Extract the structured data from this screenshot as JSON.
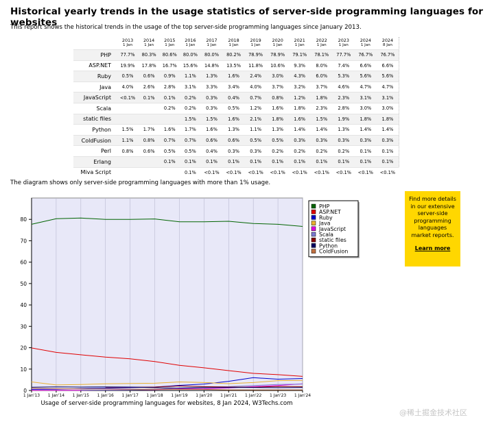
{
  "title": "Historical yearly trends in the usage statistics of server-side programming languages for websites",
  "intro": "This report shows the historical trends in the usage of the top server-side programming languages since January 2013.",
  "table": {
    "columns": [
      {
        "year": "2013",
        "date": "1 Jan"
      },
      {
        "year": "2014",
        "date": "1 Jan"
      },
      {
        "year": "2015",
        "date": "1 Jan"
      },
      {
        "year": "2016",
        "date": "1 Jan"
      },
      {
        "year": "2017",
        "date": "1 Jan"
      },
      {
        "year": "2018",
        "date": "1 Jan"
      },
      {
        "year": "2019",
        "date": "1 Jan"
      },
      {
        "year": "2020",
        "date": "1 Jan"
      },
      {
        "year": "2021",
        "date": "1 Jan"
      },
      {
        "year": "2022",
        "date": "1 Jan"
      },
      {
        "year": "2023",
        "date": "1 Jan"
      },
      {
        "year": "2024",
        "date": "1 Jan"
      },
      {
        "year": "2024",
        "date": "8 Jan"
      }
    ],
    "rows": [
      {
        "name": "PHP",
        "values": [
          "77.7%",
          "80.3%",
          "80.6%",
          "80.0%",
          "80.0%",
          "80.2%",
          "78.9%",
          "78.9%",
          "79.1%",
          "78.1%",
          "77.7%",
          "76.7%",
          "76.7%"
        ]
      },
      {
        "name": "ASP.NET",
        "values": [
          "19.9%",
          "17.8%",
          "16.7%",
          "15.6%",
          "14.8%",
          "13.5%",
          "11.8%",
          "10.6%",
          "9.3%",
          "8.0%",
          "7.4%",
          "6.6%",
          "6.6%"
        ]
      },
      {
        "name": "Ruby",
        "values": [
          "0.5%",
          "0.6%",
          "0.9%",
          "1.1%",
          "1.3%",
          "1.6%",
          "2.4%",
          "3.0%",
          "4.3%",
          "6.0%",
          "5.3%",
          "5.6%",
          "5.6%"
        ]
      },
      {
        "name": "Java",
        "values": [
          "4.0%",
          "2.6%",
          "2.8%",
          "3.1%",
          "3.3%",
          "3.4%",
          "4.0%",
          "3.7%",
          "3.2%",
          "3.7%",
          "4.6%",
          "4.7%",
          "4.7%"
        ]
      },
      {
        "name": "JavaScript",
        "values": [
          "<0.1%",
          "0.1%",
          "0.1%",
          "0.2%",
          "0.3%",
          "0.4%",
          "0.7%",
          "0.8%",
          "1.2%",
          "1.8%",
          "2.3%",
          "3.1%",
          "3.1%"
        ]
      },
      {
        "name": "Scala",
        "values": [
          "",
          "",
          "0.2%",
          "0.2%",
          "0.3%",
          "0.5%",
          "1.2%",
          "1.6%",
          "1.8%",
          "2.3%",
          "2.8%",
          "3.0%",
          "3.0%"
        ]
      },
      {
        "name": "static files",
        "values": [
          "",
          "",
          "",
          "1.5%",
          "1.5%",
          "1.6%",
          "2.1%",
          "1.8%",
          "1.6%",
          "1.5%",
          "1.9%",
          "1.8%",
          "1.8%"
        ]
      },
      {
        "name": "Python",
        "values": [
          "1.5%",
          "1.7%",
          "1.6%",
          "1.7%",
          "1.6%",
          "1.3%",
          "1.1%",
          "1.3%",
          "1.4%",
          "1.4%",
          "1.3%",
          "1.4%",
          "1.4%"
        ]
      },
      {
        "name": "ColdFusion",
        "values": [
          "1.1%",
          "0.8%",
          "0.7%",
          "0.7%",
          "0.6%",
          "0.6%",
          "0.5%",
          "0.5%",
          "0.3%",
          "0.3%",
          "0.3%",
          "0.3%",
          "0.3%"
        ]
      },
      {
        "name": "Perl",
        "values": [
          "0.8%",
          "0.6%",
          "0.5%",
          "0.5%",
          "0.4%",
          "0.3%",
          "0.3%",
          "0.2%",
          "0.2%",
          "0.2%",
          "0.2%",
          "0.1%",
          "0.1%"
        ]
      },
      {
        "name": "Erlang",
        "values": [
          "",
          "",
          "0.1%",
          "0.1%",
          "0.1%",
          "0.1%",
          "0.1%",
          "0.1%",
          "0.1%",
          "0.1%",
          "0.1%",
          "0.1%",
          "0.1%"
        ]
      },
      {
        "name": "Miva Script",
        "values": [
          "",
          "",
          "",
          "0.1%",
          "<0.1%",
          "<0.1%",
          "<0.1%",
          "<0.1%",
          "<0.1%",
          "<0.1%",
          "<0.1%",
          "<0.1%",
          "<0.1%"
        ]
      }
    ]
  },
  "diagram_note": "The diagram shows only server-side programming languages with more than 1% usage.",
  "ad": {
    "text": "Find more details in our extensive server-side programming languages market reports.",
    "link": "Learn more"
  },
  "watermark": "@稀土掘金技术社区",
  "chart_data": {
    "type": "line",
    "title": "",
    "caption": "Usage of server-side programming languages for websites, 8 Jan 2024, W3Techs.com",
    "xlabel": "",
    "ylabel": "",
    "x": [
      2013,
      2014,
      2015,
      2016,
      2017,
      2018,
      2019,
      2020,
      2021,
      2022,
      2023,
      2024
    ],
    "x_tick_labels": [
      "1 Jan'13",
      "1 Jan'14",
      "1 Jan'15",
      "1 Jan'16",
      "1 Jan'17",
      "1 Jan'18",
      "1 Jan'19",
      "1 Jan'20",
      "1 Jan'21",
      "1 Jan'22",
      "1 Jan'23",
      "1 Jan'24"
    ],
    "xlim": [
      2013,
      2024
    ],
    "ylim": [
      0,
      90
    ],
    "y_ticks": [
      0,
      10,
      20,
      30,
      40,
      50,
      60,
      70,
      80
    ],
    "grid": "vertical",
    "plot_background": "#e8e8f8",
    "legend_position": "right",
    "series": [
      {
        "name": "PHP",
        "color": "#006400",
        "values": [
          77.7,
          80.3,
          80.6,
          80.0,
          80.0,
          80.2,
          78.9,
          78.9,
          79.1,
          78.1,
          77.7,
          76.7
        ]
      },
      {
        "name": "ASP.NET",
        "color": "#e00000",
        "values": [
          19.9,
          17.8,
          16.7,
          15.6,
          14.8,
          13.5,
          11.8,
          10.6,
          9.3,
          8.0,
          7.4,
          6.6
        ]
      },
      {
        "name": "Ruby",
        "color": "#0000cc",
        "values": [
          0.5,
          0.6,
          0.9,
          1.1,
          1.3,
          1.6,
          2.4,
          3.0,
          4.3,
          6.0,
          5.3,
          5.6
        ]
      },
      {
        "name": "Java",
        "color": "#e8b030",
        "values": [
          4.0,
          2.6,
          2.8,
          3.1,
          3.3,
          3.4,
          4.0,
          3.7,
          3.2,
          3.7,
          4.6,
          4.7
        ]
      },
      {
        "name": "JavaScript",
        "color": "#e000e0",
        "values": [
          0.05,
          0.1,
          0.1,
          0.2,
          0.3,
          0.4,
          0.7,
          0.8,
          1.2,
          1.8,
          2.3,
          3.1
        ]
      },
      {
        "name": "Scala",
        "color": "#7a7ad0",
        "values": [
          null,
          null,
          0.2,
          0.2,
          0.3,
          0.5,
          1.2,
          1.6,
          1.8,
          2.3,
          2.8,
          3.0
        ]
      },
      {
        "name": "static files",
        "color": "#880000",
        "values": [
          null,
          null,
          null,
          1.5,
          1.5,
          1.6,
          2.1,
          1.8,
          1.6,
          1.5,
          1.9,
          1.8
        ]
      },
      {
        "name": "Python",
        "color": "#000060",
        "values": [
          1.5,
          1.7,
          1.6,
          1.7,
          1.6,
          1.3,
          1.1,
          1.3,
          1.4,
          1.4,
          1.3,
          1.4
        ]
      },
      {
        "name": "ColdFusion",
        "color": "#c07040",
        "values": [
          1.1,
          0.8,
          0.7,
          0.7,
          0.6,
          0.6,
          0.5,
          0.5,
          0.3,
          0.3,
          0.3,
          0.3
        ]
      }
    ]
  }
}
